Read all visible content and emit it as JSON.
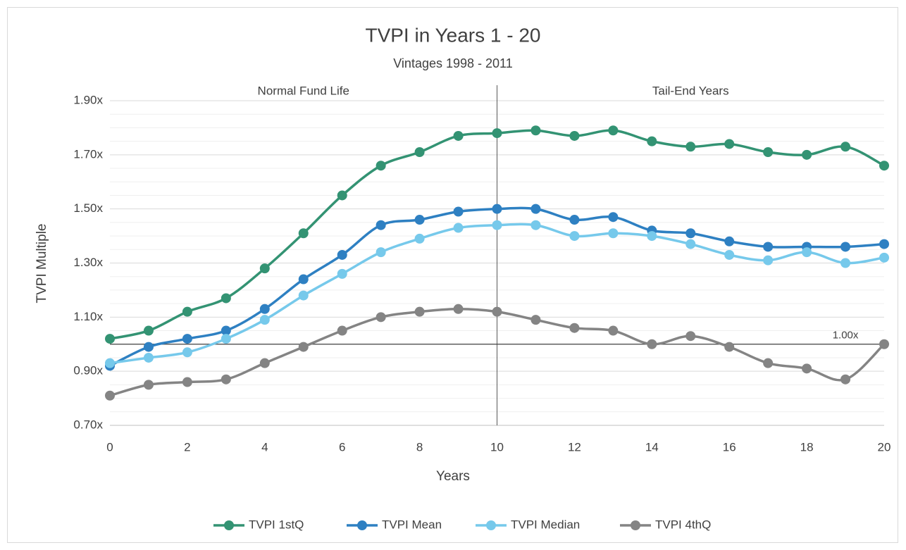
{
  "chart_data": {
    "type": "line",
    "title": "TVPI in Years 1 - 20",
    "subtitle": "Vintages 1998 - 2011",
    "x_label": "Years",
    "y_label": "TVPI Multiple",
    "x": [
      0,
      1,
      2,
      3,
      4,
      5,
      6,
      7,
      8,
      9,
      10,
      11,
      12,
      13,
      14,
      15,
      16,
      17,
      18,
      19,
      20
    ],
    "series": [
      {
        "name": "TVPI 1stQ",
        "color": "#339373",
        "values": [
          1.02,
          1.05,
          1.12,
          1.17,
          1.28,
          1.41,
          1.55,
          1.66,
          1.71,
          1.77,
          1.78,
          1.79,
          1.77,
          1.79,
          1.75,
          1.73,
          1.74,
          1.71,
          1.7,
          1.73,
          1.66
        ]
      },
      {
        "name": "TVPI Mean",
        "color": "#2e80c2",
        "values": [
          0.92,
          0.99,
          1.02,
          1.05,
          1.13,
          1.24,
          1.33,
          1.44,
          1.46,
          1.49,
          1.5,
          1.5,
          1.46,
          1.47,
          1.42,
          1.41,
          1.38,
          1.36,
          1.36,
          1.36,
          1.37
        ]
      },
      {
        "name": "TVPI Median",
        "color": "#76c9eb",
        "values": [
          0.93,
          0.95,
          0.97,
          1.02,
          1.09,
          1.18,
          1.26,
          1.34,
          1.39,
          1.43,
          1.44,
          1.44,
          1.4,
          1.41,
          1.4,
          1.37,
          1.33,
          1.31,
          1.34,
          1.3,
          1.32
        ]
      },
      {
        "name": "TVPI 4thQ",
        "color": "#848484",
        "values": [
          0.81,
          0.85,
          0.86,
          0.87,
          0.93,
          0.99,
          1.05,
          1.1,
          1.12,
          1.13,
          1.12,
          1.09,
          1.06,
          1.05,
          1.0,
          1.03,
          0.99,
          0.93,
          0.91,
          0.87,
          1.0
        ]
      }
    ],
    "xlim": [
      0,
      20
    ],
    "xticks": [
      0,
      2,
      4,
      6,
      8,
      10,
      12,
      14,
      16,
      18,
      20
    ],
    "ylim": [
      0.7,
      1.9
    ],
    "yticks": [
      {
        "value": 0.7,
        "label": "0.70x"
      },
      {
        "value": 0.9,
        "label": "0.90x"
      },
      {
        "value": 1.1,
        "label": "1.10x"
      },
      {
        "value": 1.3,
        "label": "1.30x"
      },
      {
        "value": 1.5,
        "label": "1.50x"
      },
      {
        "value": 1.7,
        "label": "1.70x"
      },
      {
        "value": 1.9,
        "label": "1.90x"
      }
    ],
    "yminorticks": [
      0.75,
      0.8,
      0.85,
      0.95,
      1.0,
      1.05,
      1.15,
      1.2,
      1.25,
      1.35,
      1.4,
      1.45,
      1.55,
      1.6,
      1.65,
      1.75,
      1.8,
      1.85
    ],
    "grid": true,
    "reference_line": {
      "value": 1.0,
      "label": "1.00x"
    },
    "divider_x": 10,
    "regions": [
      "Normal Fund Life",
      "Tail-End Years"
    ],
    "legend": "bottom"
  }
}
